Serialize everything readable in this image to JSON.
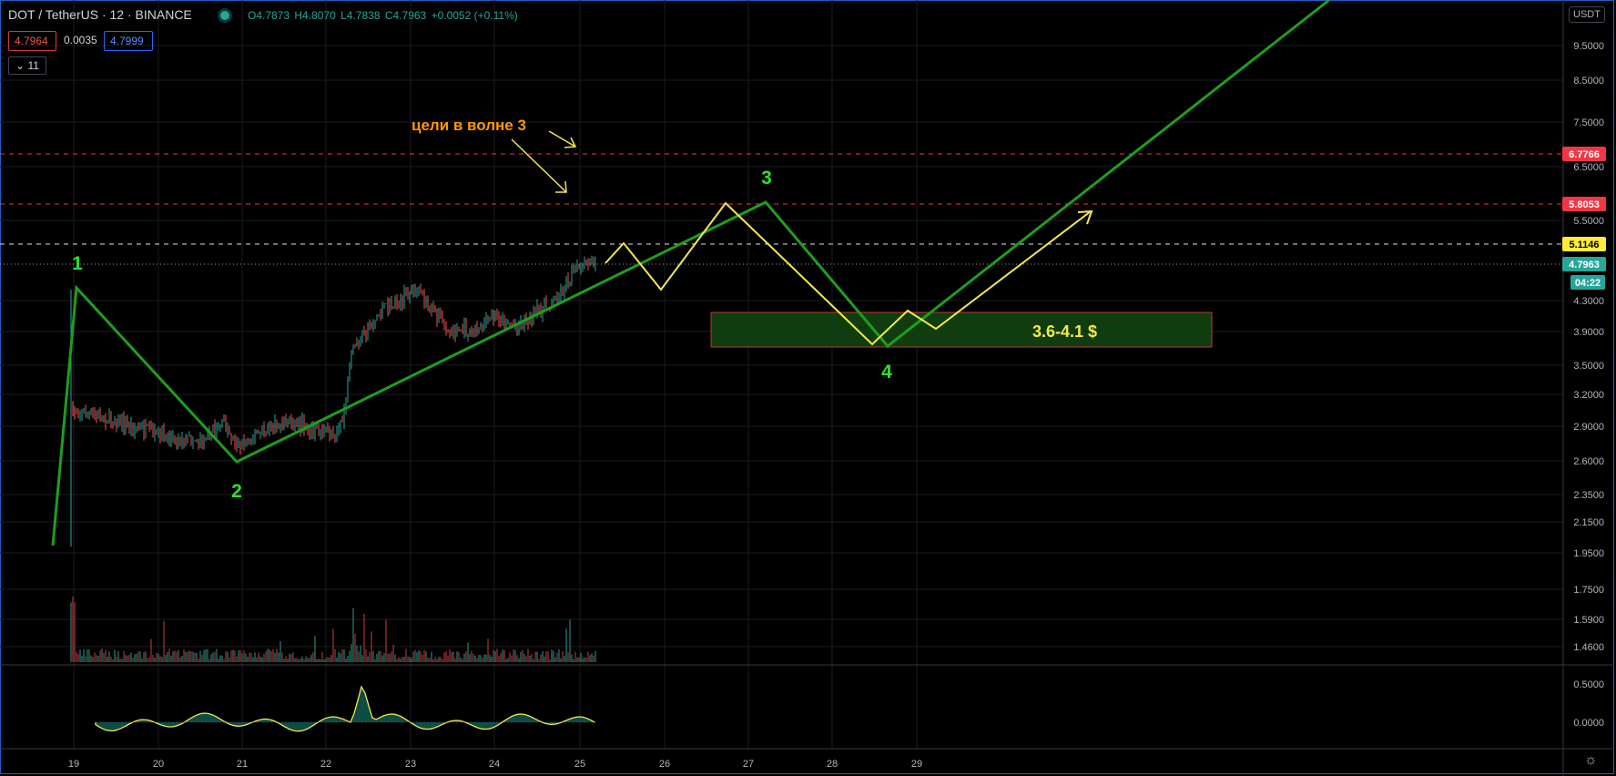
{
  "header": {
    "symbol": "DOT / TetherUS · 12 · BINANCE",
    "open": "O4.7873",
    "high": "H4.8070",
    "low": "L4.7838",
    "close": "C4.7963",
    "change": "+0.0052 (+0.11%)",
    "sell_price": "4.7964",
    "spread": "0.0035",
    "buy_price": "4.7999",
    "lots": "11",
    "currency": "USDT"
  },
  "price_axis": {
    "ticks": [
      "9.5000",
      "8.5000",
      "7.5000",
      "6.5000",
      "5.5000",
      "4.3000",
      "3.9000",
      "3.5000",
      "3.2000",
      "2.9000",
      "2.6000",
      "2.3500",
      "2.1500",
      "1.9500",
      "1.7500",
      "1.5900",
      "1.4600"
    ],
    "badges": [
      {
        "label": "6.7766",
        "color": "#f23645",
        "text_color": "#ffffff"
      },
      {
        "label": "5.8053",
        "color": "#f23645",
        "text_color": "#ffffff"
      },
      {
        "label": "5.1146",
        "color": "#ffeb3b",
        "text_color": "#000000"
      },
      {
        "label": "4.7963",
        "color": "#26a69a",
        "text_color": "#ffffff"
      },
      {
        "label": "04:22",
        "color": "#26a69a",
        "text_color": "#ffffff"
      }
    ]
  },
  "indicator_axis": {
    "ticks": [
      "0.5000",
      "0.0000"
    ]
  },
  "time_axis": {
    "ticks": [
      "19",
      "20",
      "21",
      "22",
      "23",
      "24",
      "25",
      "26",
      "27",
      "28",
      "29"
    ]
  },
  "annotations": {
    "wave_labels": [
      "1",
      "2",
      "3",
      "4"
    ],
    "targets_text": "цели в волне 3",
    "zone_text": "3.6-4.1 $"
  },
  "colors": {
    "wave_green": "#1e9e1e",
    "projection_yellow": "#f4e94a",
    "annotation_orange": "#ff9800",
    "zone_fill": "#0f3d0f",
    "zone_border": "#c0392b",
    "candle_up": "#26a69a",
    "candle_down": "#ef5350"
  }
}
